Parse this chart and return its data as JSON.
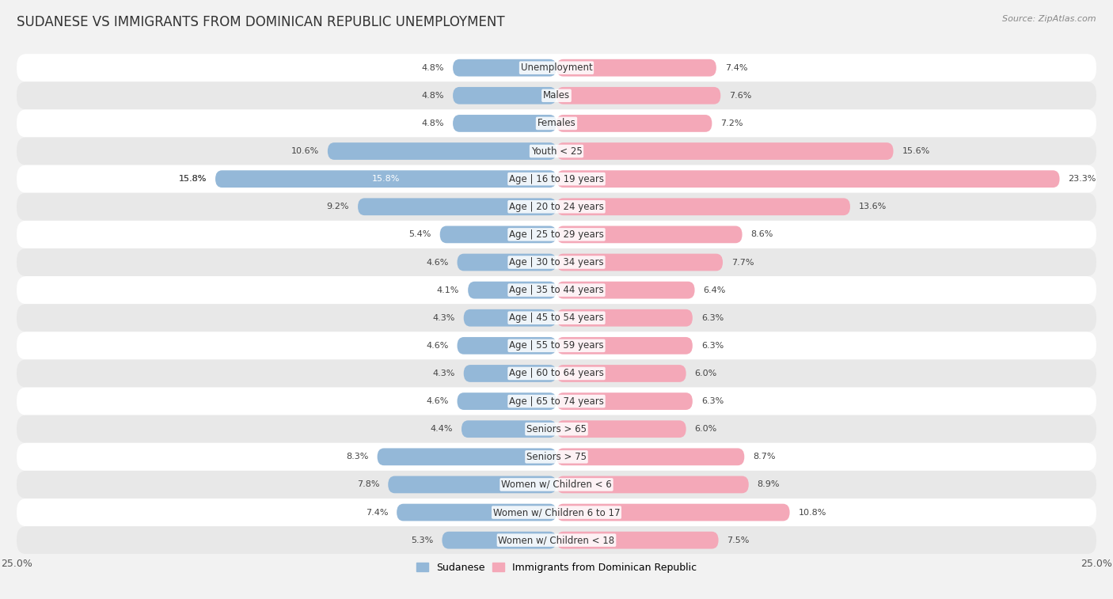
{
  "title": "SUDANESE VS IMMIGRANTS FROM DOMINICAN REPUBLIC UNEMPLOYMENT",
  "source": "Source: ZipAtlas.com",
  "categories": [
    "Unemployment",
    "Males",
    "Females",
    "Youth < 25",
    "Age | 16 to 19 years",
    "Age | 20 to 24 years",
    "Age | 25 to 29 years",
    "Age | 30 to 34 years",
    "Age | 35 to 44 years",
    "Age | 45 to 54 years",
    "Age | 55 to 59 years",
    "Age | 60 to 64 years",
    "Age | 65 to 74 years",
    "Seniors > 65",
    "Seniors > 75",
    "Women w/ Children < 6",
    "Women w/ Children 6 to 17",
    "Women w/ Children < 18"
  ],
  "sudanese": [
    4.8,
    4.8,
    4.8,
    10.6,
    15.8,
    9.2,
    5.4,
    4.6,
    4.1,
    4.3,
    4.6,
    4.3,
    4.6,
    4.4,
    8.3,
    7.8,
    7.4,
    5.3
  ],
  "dominican": [
    7.4,
    7.6,
    7.2,
    15.6,
    23.3,
    13.6,
    8.6,
    7.7,
    6.4,
    6.3,
    6.3,
    6.0,
    6.3,
    6.0,
    8.7,
    8.9,
    10.8,
    7.5
  ],
  "sudanese_color": "#94b8d8",
  "dominican_color": "#f4a8b8",
  "sudanese_label": "Sudanese",
  "dominican_label": "Immigrants from Dominican Republic",
  "xlim": 25.0,
  "bg_color": "#f2f2f2",
  "row_light": "#ffffff",
  "row_dark": "#e8e8e8",
  "title_fontsize": 12,
  "label_fontsize": 8.5,
  "value_fontsize": 8,
  "legend_fontsize": 9,
  "source_fontsize": 8
}
